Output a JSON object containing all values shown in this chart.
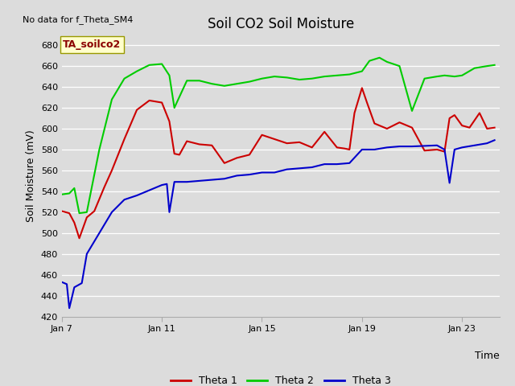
{
  "title": "Soil CO2 Soil Moisture",
  "xlabel": "Time",
  "ylabel": "Soil Moisture (mV)",
  "top_left_text": "No data for f_Theta_SM4",
  "annotation_box": "TA_soilco2",
  "ylim": [
    420,
    690
  ],
  "yticks": [
    420,
    440,
    460,
    480,
    500,
    520,
    540,
    560,
    580,
    600,
    620,
    640,
    660,
    680
  ],
  "xlim": [
    7,
    24.5
  ],
  "xtick_positions": [
    7,
    11,
    15,
    19,
    23
  ],
  "xtick_labels": [
    "Jan 7",
    "Jan 11",
    "Jan 15",
    "Jan 19",
    "Jan 23"
  ],
  "legend": [
    "Theta 1",
    "Theta 2",
    "Theta 3"
  ],
  "theta1_x": [
    7.0,
    7.3,
    7.5,
    7.7,
    8.0,
    8.3,
    8.7,
    9.0,
    9.5,
    10.0,
    10.5,
    11.0,
    11.3,
    11.5,
    11.7,
    12.0,
    12.5,
    13.0,
    13.5,
    14.0,
    14.5,
    15.0,
    15.5,
    16.0,
    16.5,
    17.0,
    17.5,
    18.0,
    18.3,
    18.5,
    18.7,
    19.0,
    19.2,
    19.5,
    20.0,
    20.5,
    21.0,
    21.5,
    22.0,
    22.3,
    22.5,
    22.7,
    23.0,
    23.3,
    23.7,
    24.0,
    24.3
  ],
  "theta1_y": [
    521,
    519,
    510,
    495,
    515,
    521,
    544,
    560,
    590,
    618,
    627,
    625,
    607,
    576,
    575,
    588,
    585,
    584,
    567,
    572,
    575,
    594,
    590,
    586,
    587,
    582,
    597,
    582,
    581,
    580,
    615,
    639,
    625,
    605,
    600,
    606,
    601,
    579,
    580,
    578,
    610,
    613,
    603,
    601,
    615,
    600,
    601
  ],
  "theta2_x": [
    7.0,
    7.3,
    7.5,
    7.7,
    8.0,
    8.5,
    9.0,
    9.5,
    10.0,
    10.5,
    11.0,
    11.3,
    11.5,
    12.0,
    12.5,
    13.0,
    13.5,
    14.0,
    14.5,
    15.0,
    15.5,
    16.0,
    16.5,
    17.0,
    17.5,
    18.0,
    18.5,
    19.0,
    19.3,
    19.7,
    20.0,
    20.5,
    21.0,
    21.5,
    22.0,
    22.3,
    22.7,
    23.0,
    23.5,
    24.0,
    24.3
  ],
  "theta2_y": [
    537,
    538,
    543,
    519,
    520,
    580,
    628,
    648,
    655,
    661,
    662,
    651,
    620,
    646,
    646,
    643,
    641,
    643,
    645,
    648,
    650,
    649,
    647,
    648,
    650,
    651,
    652,
    655,
    665,
    668,
    664,
    660,
    617,
    648,
    650,
    651,
    650,
    651,
    658,
    660,
    661
  ],
  "theta3_x": [
    7.0,
    7.2,
    7.3,
    7.5,
    7.8,
    8.0,
    8.5,
    9.0,
    9.5,
    10.0,
    10.5,
    11.0,
    11.2,
    11.3,
    11.5,
    12.0,
    12.5,
    13.0,
    13.5,
    14.0,
    14.5,
    15.0,
    15.5,
    16.0,
    16.5,
    17.0,
    17.5,
    18.0,
    18.5,
    19.0,
    19.5,
    20.0,
    20.5,
    21.0,
    22.0,
    22.3,
    22.5,
    22.7,
    23.0,
    23.5,
    24.0,
    24.3
  ],
  "theta3_y": [
    453,
    451,
    428,
    448,
    452,
    480,
    500,
    520,
    532,
    536,
    541,
    546,
    547,
    520,
    549,
    549,
    550,
    551,
    552,
    555,
    556,
    558,
    558,
    561,
    562,
    563,
    566,
    566,
    567,
    580,
    580,
    582,
    583,
    583,
    584,
    580,
    548,
    580,
    582,
    584,
    586,
    589
  ],
  "color1": "#cc0000",
  "color2": "#00cc00",
  "color3": "#0000cc",
  "bg_color": "#dcdcdc",
  "grid_color": "#ffffff",
  "anno_box_face": "#ffffcc",
  "anno_box_edge": "#999900",
  "anno_text_color": "#8B0000"
}
